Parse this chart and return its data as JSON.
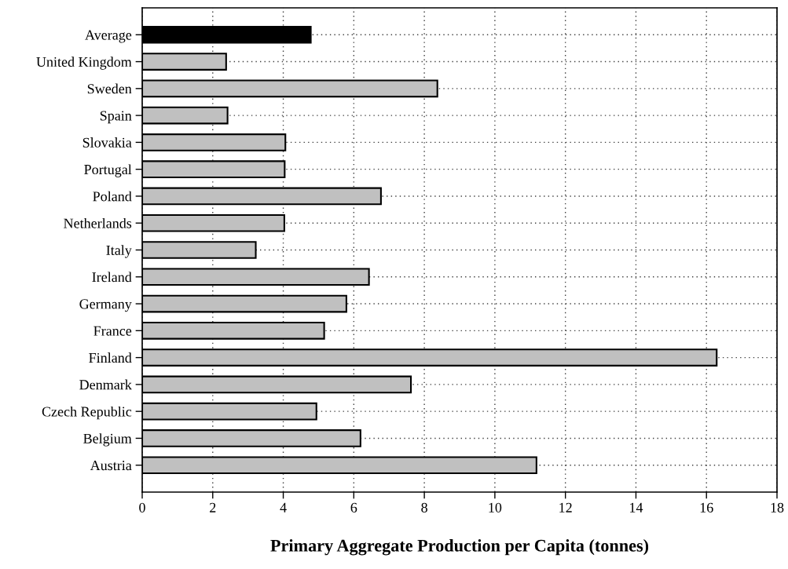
{
  "chart_data": {
    "type": "bar",
    "orientation": "horizontal",
    "xlabel": "Primary Aggregate Production per Capita (tonnes)",
    "categories": [
      "Average",
      "United Kingdom",
      "Sweden",
      "Spain",
      "Slovakia",
      "Portugal",
      "Poland",
      "Netherlands",
      "Italy",
      "Ireland",
      "Germany",
      "France",
      "Finland",
      "Denmark",
      "Czech Republic",
      "Belgium",
      "Austria"
    ],
    "values": [
      4.78,
      2.38,
      8.37,
      2.42,
      4.06,
      4.04,
      6.77,
      4.03,
      3.22,
      6.43,
      5.79,
      5.16,
      16.29,
      7.62,
      4.94,
      6.19,
      11.18
    ],
    "colors": [
      "#000000",
      "#c0c0c0",
      "#c0c0c0",
      "#c0c0c0",
      "#c0c0c0",
      "#c0c0c0",
      "#c0c0c0",
      "#c0c0c0",
      "#c0c0c0",
      "#c0c0c0",
      "#c0c0c0",
      "#c0c0c0",
      "#c0c0c0",
      "#c0c0c0",
      "#c0c0c0",
      "#c0c0c0",
      "#c0c0c0"
    ],
    "xlim": [
      0,
      18
    ],
    "xticks": [
      0,
      2,
      4,
      6,
      8,
      10,
      12,
      14,
      16,
      18
    ],
    "grid": true
  }
}
